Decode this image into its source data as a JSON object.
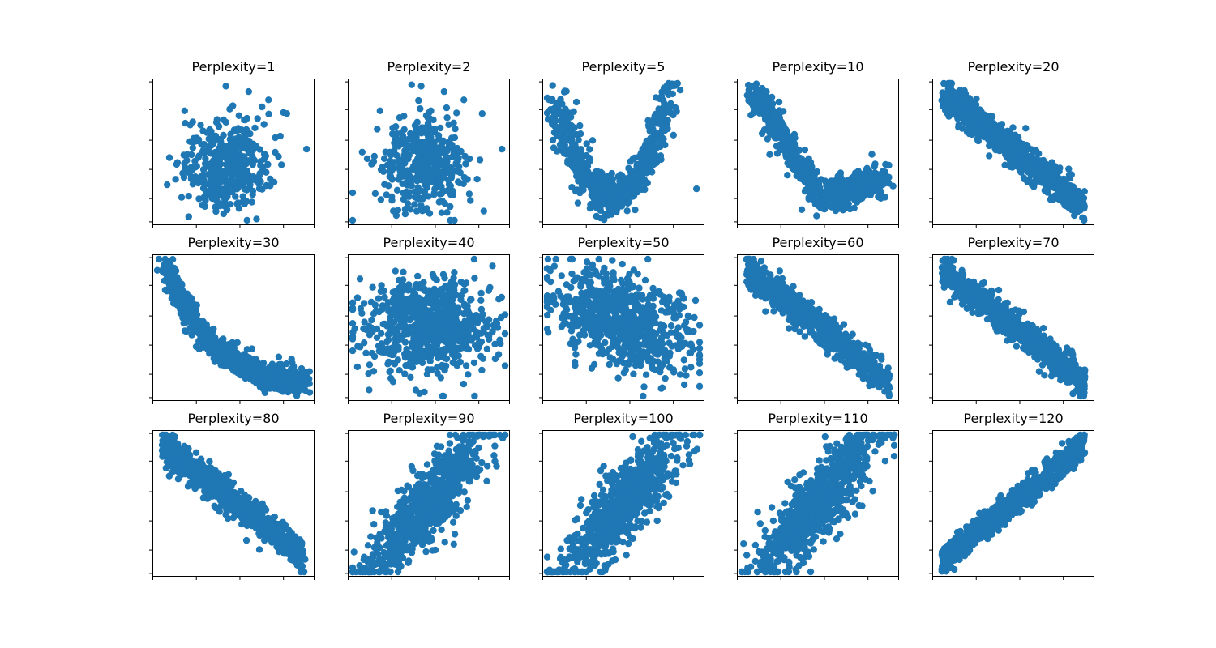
{
  "colors": {
    "points": "#1f77b4",
    "axes": "#000000",
    "background": "#ffffff"
  },
  "chart_data": [
    {
      "type": "scatter",
      "title": "Perplexity=1",
      "shape": "cloud-outliers",
      "xlabel": "",
      "ylabel": "",
      "tick_labels": "none",
      "grid": false
    },
    {
      "type": "scatter",
      "title": "Perplexity=2",
      "shape": "cloud-outliers",
      "xlabel": "",
      "ylabel": "",
      "tick_labels": "none",
      "grid": false
    },
    {
      "type": "scatter",
      "title": "Perplexity=5",
      "shape": "u-shape",
      "xlabel": "",
      "ylabel": "",
      "tick_labels": "none",
      "grid": false
    },
    {
      "type": "scatter",
      "title": "Perplexity=10",
      "shape": "curve",
      "xlabel": "",
      "ylabel": "",
      "tick_labels": "none",
      "grid": false
    },
    {
      "type": "scatter",
      "title": "Perplexity=20",
      "shape": "decreasing",
      "xlabel": "",
      "ylabel": "",
      "tick_labels": "none",
      "grid": false
    },
    {
      "type": "scatter",
      "title": "Perplexity=30",
      "shape": "decay-curve",
      "xlabel": "",
      "ylabel": "",
      "tick_labels": "none",
      "grid": false
    },
    {
      "type": "scatter",
      "title": "Perplexity=40",
      "shape": "blob",
      "xlabel": "",
      "ylabel": "",
      "tick_labels": "none",
      "grid": false
    },
    {
      "type": "scatter",
      "title": "Perplexity=50",
      "shape": "blob-tilted",
      "xlabel": "",
      "ylabel": "",
      "tick_labels": "none",
      "grid": false
    },
    {
      "type": "scatter",
      "title": "Perplexity=60",
      "shape": "decreasing",
      "xlabel": "",
      "ylabel": "",
      "tick_labels": "none",
      "grid": false
    },
    {
      "type": "scatter",
      "title": "Perplexity=70",
      "shape": "decreasing",
      "xlabel": "",
      "ylabel": "",
      "tick_labels": "none",
      "grid": false
    },
    {
      "type": "scatter",
      "title": "Perplexity=80",
      "shape": "decreasing",
      "xlabel": "",
      "ylabel": "",
      "tick_labels": "none",
      "grid": false
    },
    {
      "type": "scatter",
      "title": "Perplexity=90",
      "shape": "increasing-wide",
      "xlabel": "",
      "ylabel": "",
      "tick_labels": "none",
      "grid": false
    },
    {
      "type": "scatter",
      "title": "Perplexity=100",
      "shape": "increasing-wide",
      "xlabel": "",
      "ylabel": "",
      "tick_labels": "none",
      "grid": false
    },
    {
      "type": "scatter",
      "title": "Perplexity=110",
      "shape": "increasing-wide",
      "xlabel": "",
      "ylabel": "",
      "tick_labels": "none",
      "grid": false
    },
    {
      "type": "scatter",
      "title": "Perplexity=120",
      "shape": "increasing",
      "xlabel": "",
      "ylabel": "",
      "tick_labels": "none",
      "grid": false
    }
  ]
}
